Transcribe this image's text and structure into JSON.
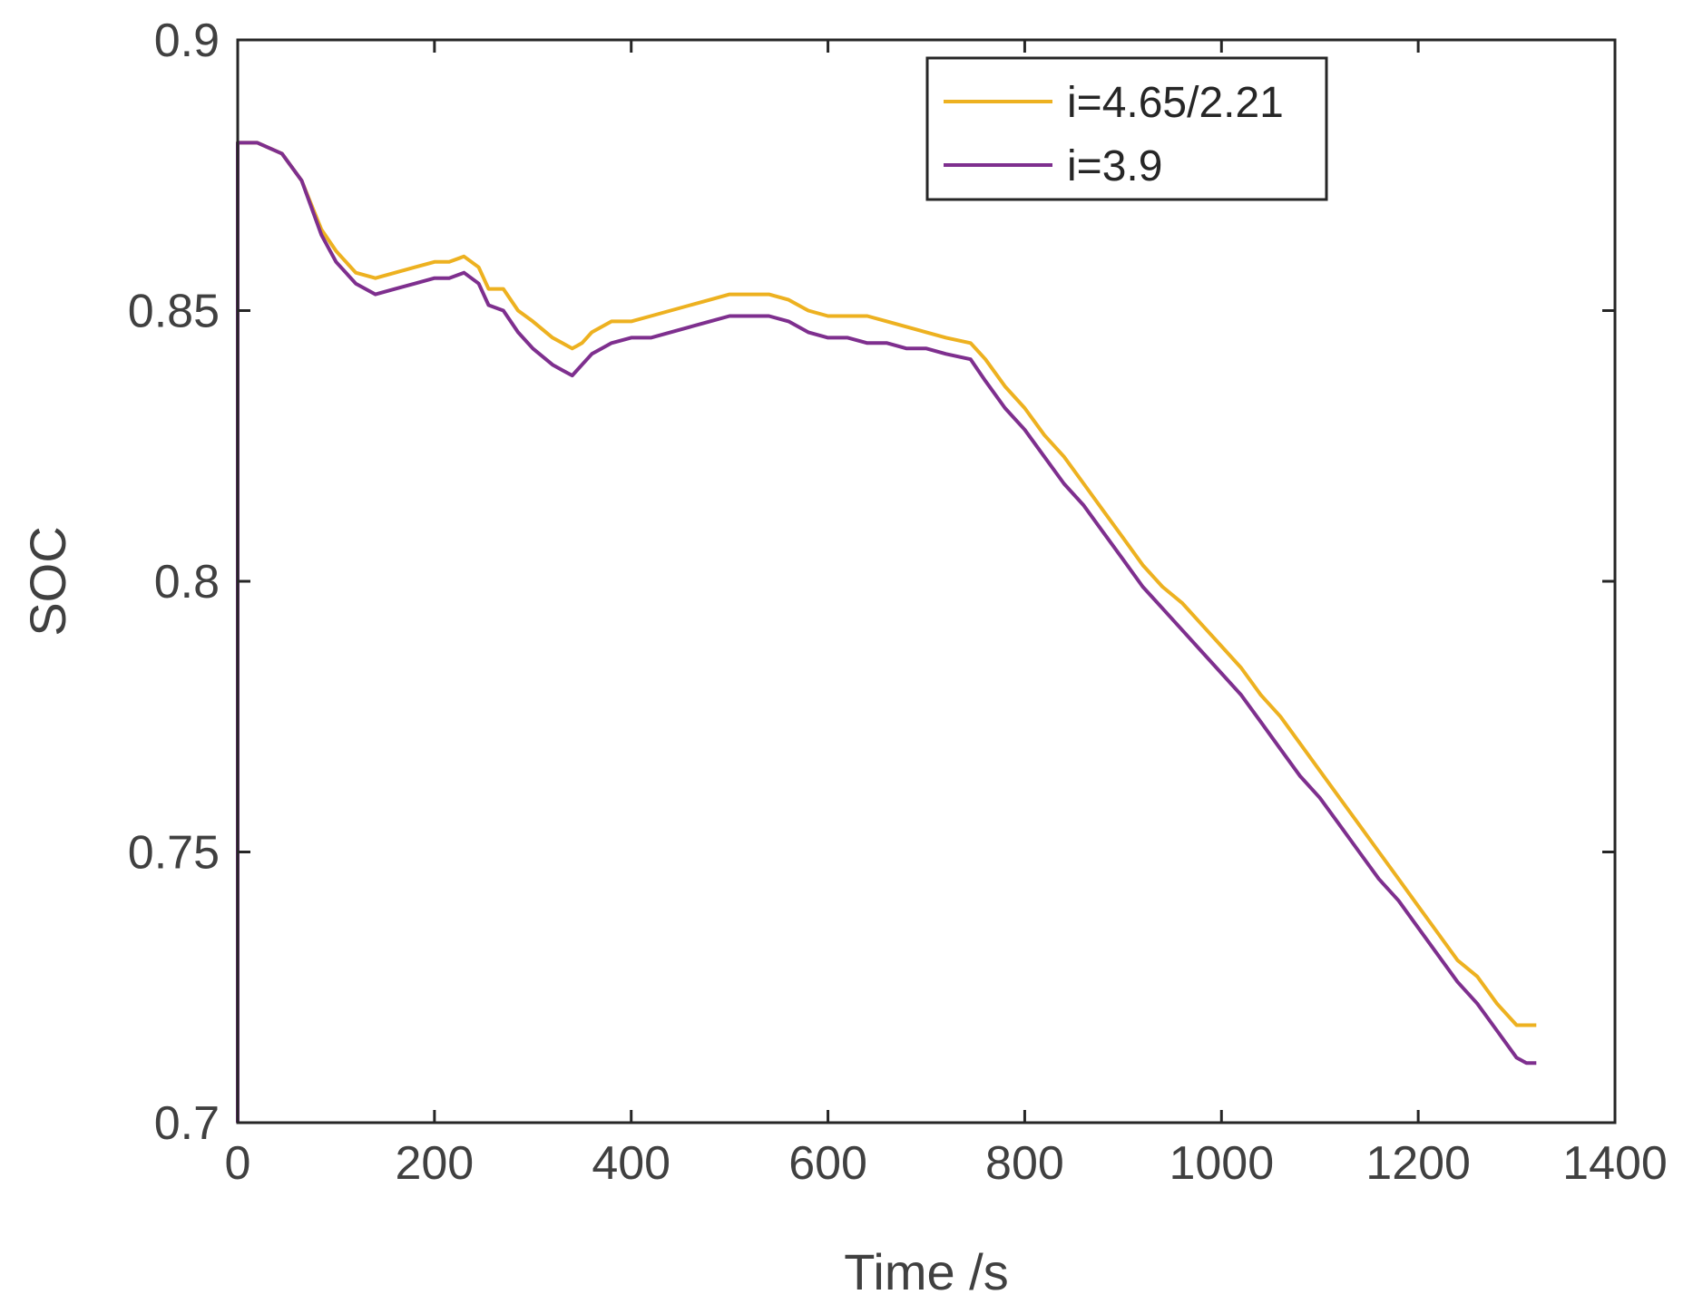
{
  "chart_data": {
    "type": "line",
    "title": "",
    "xlabel": "Time /s",
    "ylabel": "SOC",
    "xlim": [
      0,
      1400
    ],
    "ylim": [
      0.7,
      0.9
    ],
    "xticks": [
      0,
      200,
      400,
      600,
      800,
      1000,
      1200,
      1400
    ],
    "yticks": [
      0.7,
      0.75,
      0.8,
      0.85,
      0.9
    ],
    "xtick_labels": [
      "0",
      "200",
      "400",
      "600",
      "800",
      "1000",
      "1200",
      "1400"
    ],
    "ytick_labels": [
      "0.7",
      "0.75",
      "0.8",
      "0.85",
      "0.9"
    ],
    "grid": false,
    "legend_position": "top-right",
    "series": [
      {
        "name": "i=4.65/2.21",
        "color": "#edb120",
        "x": [
          0,
          0,
          20,
          45,
          65,
          85,
          100,
          120,
          140,
          160,
          180,
          200,
          215,
          230,
          245,
          255,
          270,
          285,
          300,
          320,
          330,
          340,
          350,
          360,
          380,
          400,
          420,
          440,
          460,
          480,
          500,
          520,
          540,
          560,
          580,
          600,
          620,
          640,
          660,
          680,
          700,
          720,
          745,
          760,
          780,
          800,
          820,
          840,
          860,
          880,
          900,
          920,
          940,
          960,
          980,
          1000,
          1020,
          1040,
          1060,
          1080,
          1100,
          1120,
          1140,
          1160,
          1180,
          1200,
          1220,
          1240,
          1260,
          1280,
          1300,
          1310,
          1320
        ],
        "y": [
          0.7,
          0.881,
          0.881,
          0.879,
          0.874,
          0.865,
          0.861,
          0.857,
          0.856,
          0.857,
          0.858,
          0.859,
          0.859,
          0.86,
          0.858,
          0.854,
          0.854,
          0.85,
          0.848,
          0.845,
          0.844,
          0.843,
          0.844,
          0.846,
          0.848,
          0.848,
          0.849,
          0.85,
          0.851,
          0.852,
          0.853,
          0.853,
          0.853,
          0.852,
          0.85,
          0.849,
          0.849,
          0.849,
          0.848,
          0.847,
          0.846,
          0.845,
          0.844,
          0.841,
          0.836,
          0.832,
          0.827,
          0.823,
          0.818,
          0.813,
          0.808,
          0.803,
          0.799,
          0.796,
          0.792,
          0.788,
          0.784,
          0.779,
          0.775,
          0.77,
          0.765,
          0.76,
          0.755,
          0.75,
          0.745,
          0.74,
          0.735,
          0.73,
          0.727,
          0.722,
          0.718,
          0.718,
          0.718
        ]
      },
      {
        "name": "i=3.9",
        "color": "#7e2f8e",
        "x": [
          0,
          0,
          20,
          45,
          65,
          85,
          100,
          120,
          140,
          160,
          180,
          200,
          215,
          230,
          245,
          255,
          270,
          285,
          300,
          320,
          330,
          340,
          350,
          360,
          380,
          400,
          420,
          440,
          460,
          480,
          500,
          520,
          540,
          560,
          580,
          600,
          620,
          640,
          660,
          680,
          700,
          720,
          745,
          760,
          780,
          800,
          820,
          840,
          860,
          880,
          900,
          920,
          940,
          960,
          980,
          1000,
          1020,
          1040,
          1060,
          1080,
          1100,
          1120,
          1140,
          1160,
          1180,
          1200,
          1220,
          1240,
          1260,
          1280,
          1300,
          1310,
          1320
        ],
        "y": [
          0.7,
          0.881,
          0.881,
          0.879,
          0.874,
          0.864,
          0.859,
          0.855,
          0.853,
          0.854,
          0.855,
          0.856,
          0.856,
          0.857,
          0.855,
          0.851,
          0.85,
          0.846,
          0.843,
          0.84,
          0.839,
          0.838,
          0.84,
          0.842,
          0.844,
          0.845,
          0.845,
          0.846,
          0.847,
          0.848,
          0.849,
          0.849,
          0.849,
          0.848,
          0.846,
          0.845,
          0.845,
          0.844,
          0.844,
          0.843,
          0.843,
          0.842,
          0.841,
          0.837,
          0.832,
          0.828,
          0.823,
          0.818,
          0.814,
          0.809,
          0.804,
          0.799,
          0.795,
          0.791,
          0.787,
          0.783,
          0.779,
          0.774,
          0.769,
          0.764,
          0.76,
          0.755,
          0.75,
          0.745,
          0.741,
          0.736,
          0.731,
          0.726,
          0.722,
          0.717,
          0.712,
          0.711,
          0.711
        ]
      }
    ]
  }
}
